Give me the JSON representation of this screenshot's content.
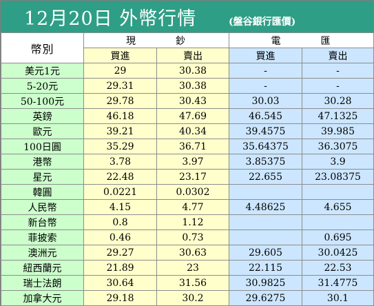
{
  "title": {
    "main": "12月20日 外幣行情",
    "source": "(盤谷銀行匯價)"
  },
  "header": {
    "currency": "幣別",
    "cash": [
      "現",
      "鈔"
    ],
    "wire": [
      "電",
      "匯"
    ],
    "buy": "買進",
    "sell": "賣出"
  },
  "rows": [
    {
      "currency": "美元1元",
      "cash_buy": "29",
      "cash_sell": "30.38",
      "wire_buy": "-",
      "wire_sell": "-"
    },
    {
      "currency": "5-20元",
      "cash_buy": "29.31",
      "cash_sell": "30.38",
      "wire_buy": "-",
      "wire_sell": "-"
    },
    {
      "currency": "50-100元",
      "cash_buy": "29.78",
      "cash_sell": "30.43",
      "wire_buy": "30.03",
      "wire_sell": "30.28"
    },
    {
      "currency": "英鎊",
      "cash_buy": "46.18",
      "cash_sell": "47.69",
      "wire_buy": "46.545",
      "wire_sell": "47.1325"
    },
    {
      "currency": "歐元",
      "cash_buy": "39.21",
      "cash_sell": "40.34",
      "wire_buy": "39.4575",
      "wire_sell": "39.985"
    },
    {
      "currency": "100日圓",
      "cash_buy": "35.29",
      "cash_sell": "36.71",
      "wire_buy": "35.64375",
      "wire_sell": "36.3075"
    },
    {
      "currency": "港幣",
      "cash_buy": "3.78",
      "cash_sell": "3.97",
      "wire_buy": "3.85375",
      "wire_sell": "3.9"
    },
    {
      "currency": "星元",
      "cash_buy": "22.48",
      "cash_sell": "23.17",
      "wire_buy": "22.655",
      "wire_sell": "23.08375"
    },
    {
      "currency": "韓圓",
      "cash_buy": "0.0221",
      "cash_sell": "0.0302",
      "wire_buy": "",
      "wire_sell": ""
    },
    {
      "currency": "人民幣",
      "cash_buy": "4.15",
      "cash_sell": "4.77",
      "wire_buy": "4.48625",
      "wire_sell": "4.655"
    },
    {
      "currency": "新台幣",
      "cash_buy": "0.8",
      "cash_sell": "1.12",
      "wire_buy": "",
      "wire_sell": ""
    },
    {
      "currency": "菲披索",
      "cash_buy": "0.46",
      "cash_sell": "0.73",
      "wire_buy": "",
      "wire_sell": "0.695"
    },
    {
      "currency": "澳洲元",
      "cash_buy": "29.27",
      "cash_sell": "30.63",
      "wire_buy": "29.605",
      "wire_sell": "30.0425"
    },
    {
      "currency": "紐西蘭元",
      "cash_buy": "21.89",
      "cash_sell": "23",
      "wire_buy": "22.115",
      "wire_sell": "22.53"
    },
    {
      "currency": "瑞士法朗",
      "cash_buy": "30.64",
      "cash_sell": "31.56",
      "wire_buy": "30.9825",
      "wire_sell": "31.4775"
    },
    {
      "currency": "加拿大元",
      "cash_buy": "29.18",
      "cash_sell": "30.2",
      "wire_buy": "29.6275",
      "wire_sell": "30.1"
    }
  ],
  "colors": {
    "title_bg": "#2f9e86",
    "currency_col": "#ccffcc",
    "cash_cols": "#ffffcc",
    "wire_cols": "#cce6ff"
  }
}
